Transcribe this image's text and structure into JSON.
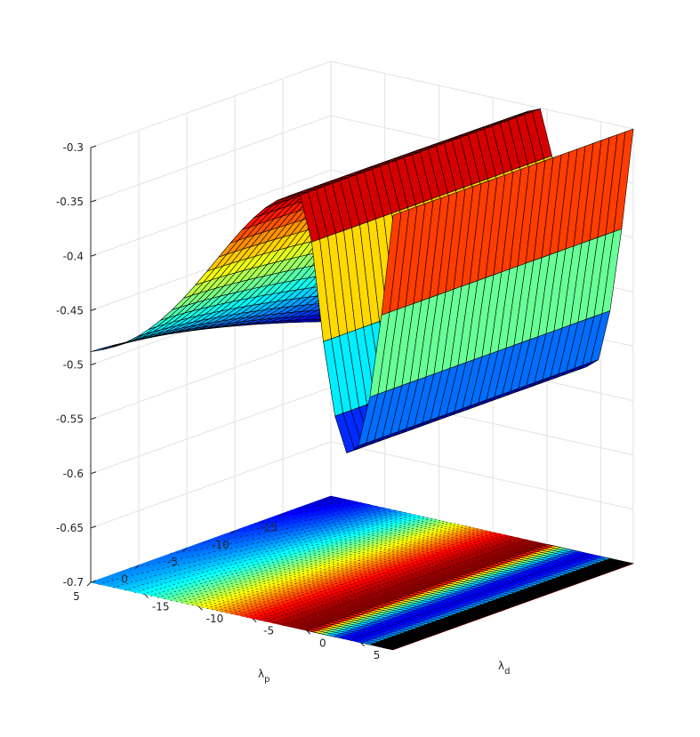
{
  "chart_data": {
    "type": "surface-with-contour",
    "title": "",
    "xlabel": {
      "symbol": "λ",
      "sub": "p"
    },
    "ylabel": {
      "symbol": "λ",
      "sub": "d"
    },
    "zlabel": "",
    "xlim": [
      -20,
      5
    ],
    "ylim": [
      -20,
      8
    ],
    "zlim": [
      -0.7,
      -0.3
    ],
    "xticks": [
      "5",
      "0",
      "-5",
      "-10",
      "-15"
    ],
    "xtick_values": [
      5,
      0,
      -5,
      -10,
      -15
    ],
    "yticks": [
      "-15",
      "-10",
      "-5",
      "0",
      "5"
    ],
    "ytick_values": [
      -15,
      -10,
      -5,
      0,
      5
    ],
    "zticks": [
      "-0.3",
      "-0.35",
      "-0.4",
      "-0.45",
      "-0.5",
      "-0.55",
      "-0.6",
      "-0.65",
      "-0.7"
    ],
    "ztick_values": [
      -0.3,
      -0.35,
      -0.4,
      -0.45,
      -0.5,
      -0.55,
      -0.6,
      -0.65,
      -0.7
    ],
    "grid": true,
    "colormap": "jet",
    "surface_grid": {
      "x_samples": 30,
      "y_samples": 26
    },
    "contour_plane_z": -0.7,
    "surface_profile": {
      "ridge_position": {
        "lambda_d": 0
      },
      "ridge_peak_value": -0.3,
      "near_end_value_lambda_p_5": -0.5,
      "far_end_value_lambda_p_minus_20": -0.555,
      "secondary_peak": {
        "lambda_d": 6,
        "value": -0.3
      },
      "trough": {
        "lambda_d": 3.5,
        "value": -0.53
      },
      "edge_value_lambda_d_8": -0.475
    }
  }
}
